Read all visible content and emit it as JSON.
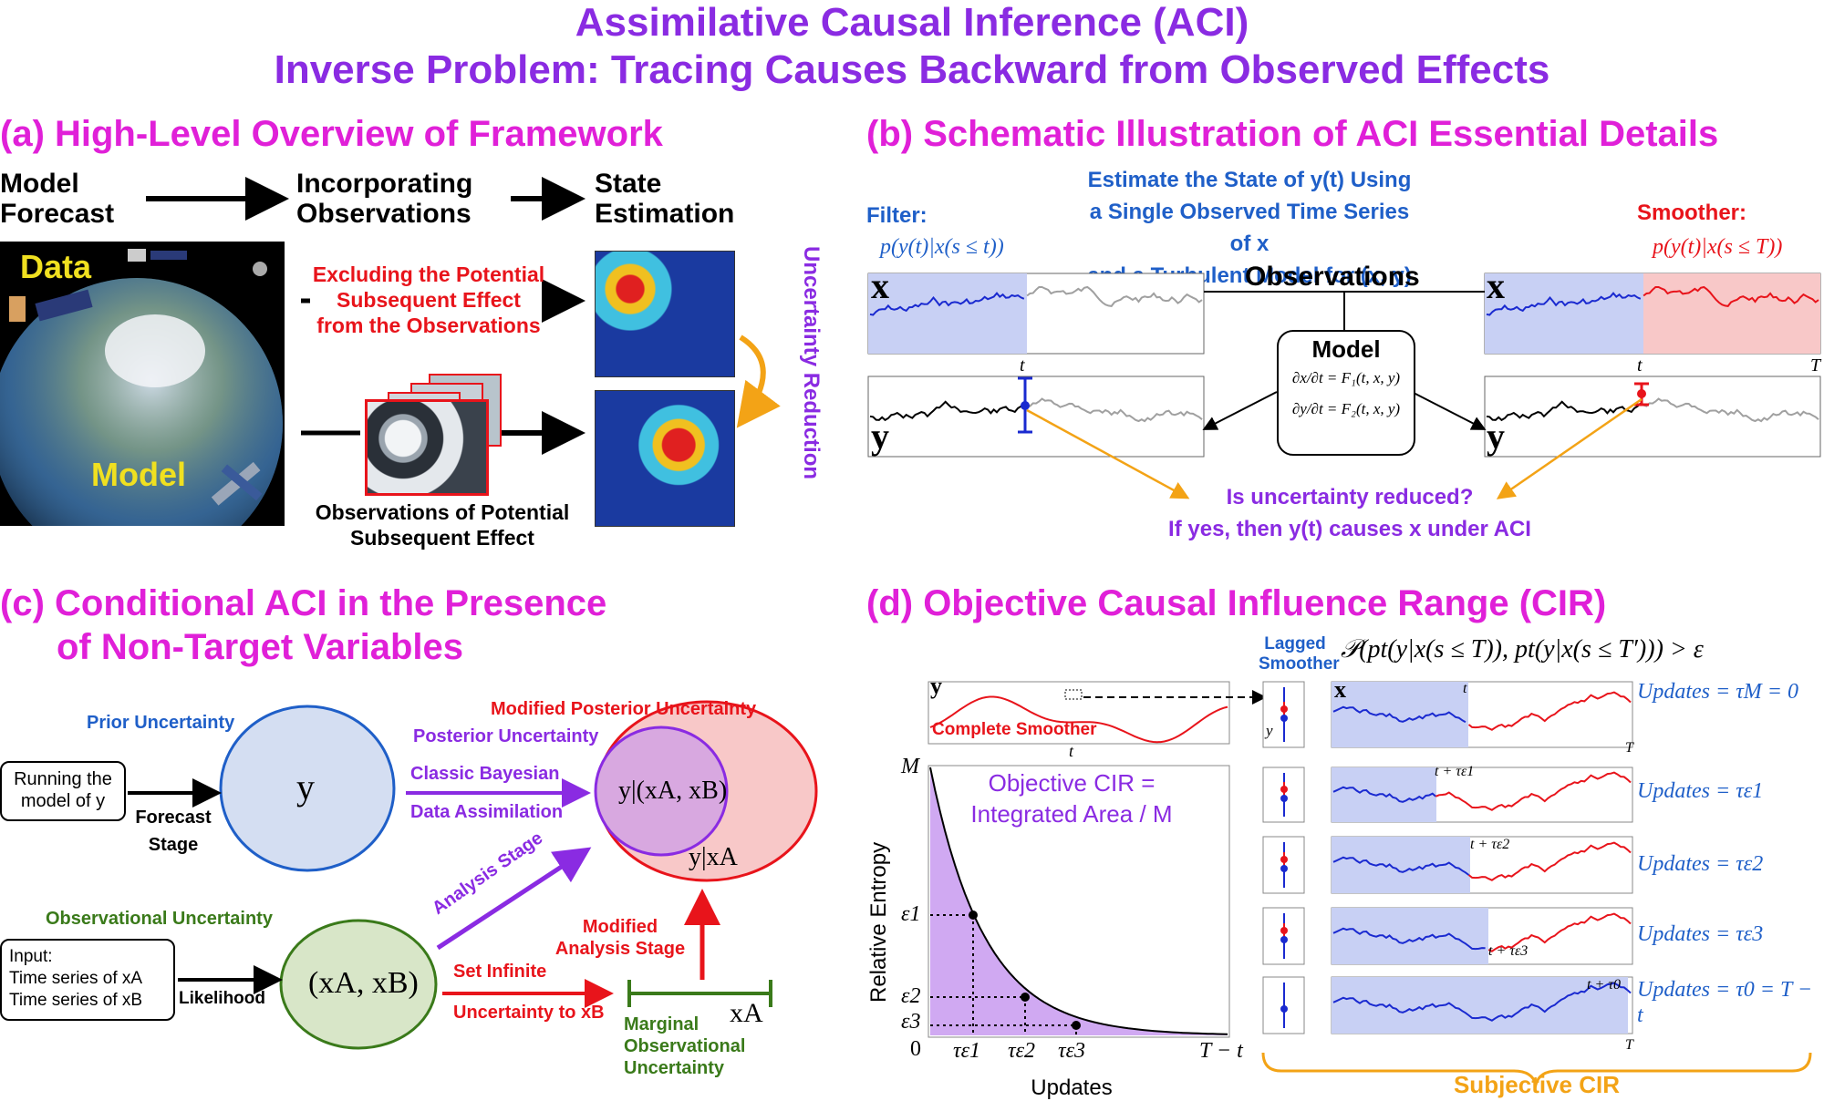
{
  "title_line1": "Assimilative Causal Inference (ACI)",
  "title_line2": "Inverse Problem: Tracing Causes Backward from Observed Effects",
  "panel_a": {
    "title": "(a) High-Level Overview of Framework",
    "step1": "Model\nForecast",
    "step2": "Incorporating\nObservations",
    "step3": "State\nEstimation",
    "data_label": "Data",
    "model_label": "Model",
    "excluding": "Excluding the Potential\nSubsequent Effect\nfrom the Observations",
    "obs_potential": "Observations of Potential\nSubsequent Effect",
    "uncertainty_reduction": "Uncertainty Reduction"
  },
  "panel_b": {
    "title": "(b) Schematic Illustration of ACI Essential Details",
    "estimate_1": "Estimate the State of y(t) Using",
    "estimate_2": "a Single Observed Time Series of x",
    "estimate_3": "and a Turbulent Model for (x, y)",
    "filter_label": "Filter:",
    "filter_formula": "p(y(t)|x(s ≤ t))",
    "smoother_label": "Smoother:",
    "smoother_formula": "p(y(t)|x(s ≤ T))",
    "observations": "Observations",
    "model": "Model",
    "eq1": "∂x/∂t = F₁(t, x, y)",
    "eq2": "∂y/∂t = F₂(t, x, y)",
    "x_label": "x",
    "y_label": "y",
    "t_label": "t",
    "T_label": "T",
    "question": "Is uncertainty reduced?",
    "answer": "If yes, then y(t) causes x under ACI"
  },
  "panel_c": {
    "title_1": "(c) Conditional ACI in the Presence",
    "title_2": "of Non-Target Variables",
    "prior": "Prior Uncertainty",
    "running": "Running the\nmodel of y",
    "forecast": "Forecast\nStage",
    "y": "y",
    "posterior": "Posterior Uncertainty",
    "modified_posterior": "Modified Posterior Uncertainty",
    "classic": "Classic Bayesian",
    "data_assim": "Data Assimilation",
    "y_given_ab": "y|(xA, xB)",
    "y_given_a": "y|xA",
    "analysis": "Analysis Stage",
    "obs_uncertainty": "Observational Uncertainty",
    "input": "Input:\nTime series of xA\nTime series of xB",
    "likelihood": "Likelihood",
    "xaxb": "(xA, xB)",
    "set_infinite": "Set Infinite",
    "uncertainty_to": "Uncertainty to xB",
    "modified_analysis": "Modified\nAnalysis Stage",
    "xa": "xA",
    "marginal": "Marginal\nObservational\nUncertainty"
  },
  "panel_d": {
    "title": "(d) Objective Causal Influence Range (CIR)",
    "lagged": "Lagged\nSmoother",
    "criterion": "𝒫(pt(y|x(s ≤ T)), pt(y|x(s ≤ T′))) > ε",
    "complete_smoother": "Complete Smoother",
    "objective_1": "Objective CIR =",
    "objective_2": "Integrated Area / M",
    "ylabel": "Relative Entropy",
    "xlabel": "Updates",
    "M": "M",
    "zero": "0",
    "T_minus_t": "T − t",
    "eps1": "ε1",
    "eps2": "ε2",
    "eps3": "ε3",
    "tau1": "τε1",
    "tau2": "τε2",
    "tau3": "τε3",
    "updates": [
      "Updates = τM = 0",
      "Updates = τε1",
      "Updates = τε2",
      "Updates = τε3",
      "Updates = τ0 = T − t"
    ],
    "row_marks": [
      "t",
      "t + τε1",
      "t + τε2",
      "t + τε3",
      "t + τ0"
    ],
    "subjective": "Subjective CIR"
  },
  "colors": {
    "title": "#8a2be2",
    "panel_title": "#e020d8",
    "blue": "#1f5fc8",
    "red": "#e8141b",
    "purple": "#8a2be2",
    "green": "#3a7a1a",
    "orange": "#f3a316"
  }
}
